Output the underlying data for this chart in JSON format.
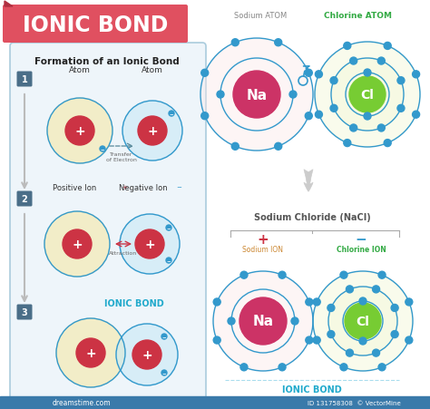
{
  "title": "IONIC BOND",
  "title_bg_left": "#e05565",
  "title_bg_right": "#cc4455",
  "bg_color": "#ffffff",
  "left_panel_bg": "#eef5fa",
  "left_panel_border": "#aaccdd",
  "formation_title": "Formation of an Ionic Bond",
  "step_bg": "#4a6e88",
  "atom1_fill": "#f5e9a8",
  "atom2_fill": "#c8e8f5",
  "atom_border": "#3399cc",
  "nucleus_fill_red": "#cc3344",
  "electron_color": "#3399cc",
  "electron_border": "#2277aa",
  "arrow_color": "#bbbbbb",
  "ionic_bond_color": "#22aacc",
  "na_fill_outer": "#cc3366",
  "na_fill_inner": "#993355",
  "cl_fill_outer": "#77cc33",
  "cl_fill_inner": "#559922",
  "orbit_color": "#3399cc",
  "orbit_fill_na": "#fce8e8",
  "orbit_fill_cl": "#f0f5d0",
  "sodium_ion_label": "Sodium ION",
  "chlorine_ion_label": "Chlorine ION",
  "nacl_label": "Sodium Chloride (NaCl)",
  "ionic_bond_label": "IONIC BOND",
  "sodium_atom_label": "Sodium ATOM",
  "chlorine_atom_label": "Chlorine ATOM",
  "waterbar_color": "#3a7aaa",
  "step_labels": [
    "1",
    "2",
    "3"
  ]
}
